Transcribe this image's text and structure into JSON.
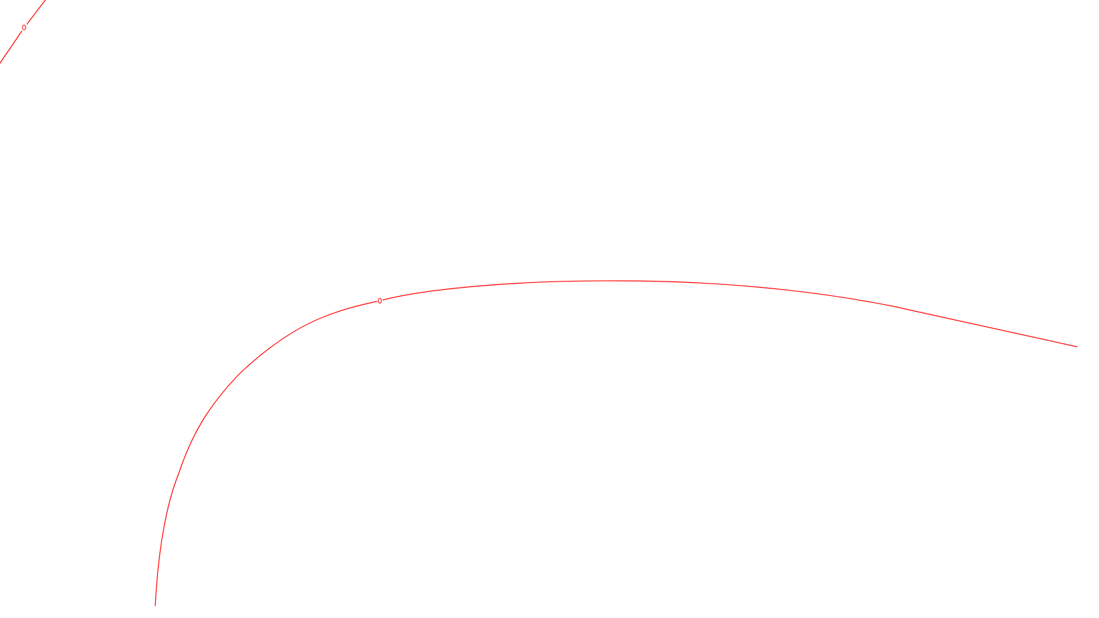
{
  "chart_data": {
    "type": "contour",
    "colors": {
      "background": "#ffffff",
      "contour": "#ff0000"
    },
    "grid": false,
    "legend": "none",
    "series": [
      {
        "level_label": "0",
        "style": "solid"
      },
      {
        "level_label": "0",
        "style": "solid"
      }
    ]
  }
}
